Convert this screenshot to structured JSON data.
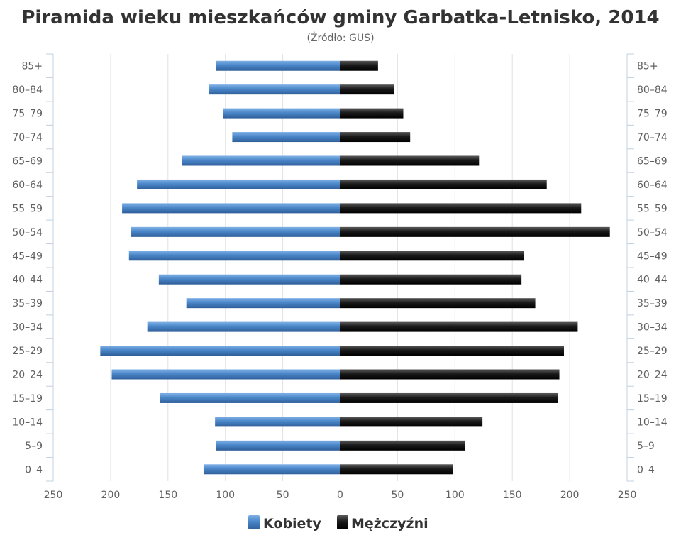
{
  "chart_data": {
    "type": "bar",
    "title": "Piramida wieku mieszkańców gminy Garbatka-Letnisko, 2014",
    "subtitle": "(Źródło: GUS)",
    "categories": [
      "85+",
      "80-84",
      "75-79",
      "70-74",
      "65-69",
      "60-64",
      "55-59",
      "50-54",
      "45-49",
      "40-44",
      "35-39",
      "30-34",
      "25-29",
      "20-24",
      "15-19",
      "10-14",
      "5-9",
      "0-4"
    ],
    "series": [
      {
        "name": "Kobiety",
        "color": "#4a86c8",
        "values": [
          108,
          114,
          102,
          94,
          138,
          177,
          190,
          182,
          184,
          158,
          134,
          168,
          209,
          199,
          157,
          109,
          108,
          119
        ]
      },
      {
        "name": "Mężczyźni",
        "color": "#1a1a1a",
        "values": [
          33,
          47,
          55,
          61,
          121,
          180,
          210,
          235,
          160,
          158,
          170,
          207,
          195,
          191,
          190,
          124,
          109,
          98
        ]
      }
    ],
    "x_ticks": [
      "250",
      "200",
      "150",
      "100",
      "50",
      "0",
      "50",
      "100",
      "150",
      "200",
      "250"
    ],
    "xlim": [
      -250,
      250
    ],
    "grid": true,
    "legend": "bottom"
  }
}
